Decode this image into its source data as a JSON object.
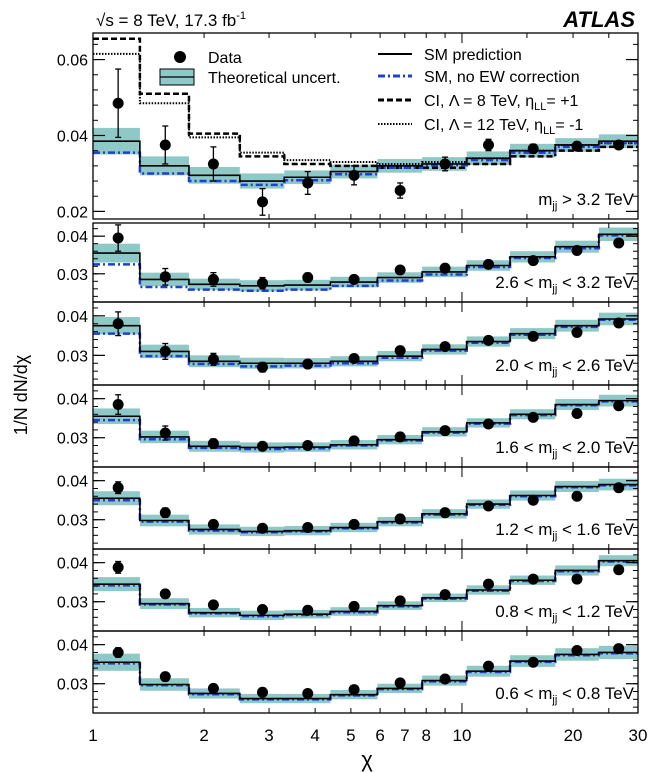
{
  "header": {
    "energy_lumi_prefix": "√s = 8 TeV, 17.3 fb",
    "energy_lumi_sup": "-1",
    "experiment": "ATLAS"
  },
  "legend": {
    "data": "Data",
    "theory": "Theoretical uncert.",
    "sm": "SM prediction",
    "sm_noew": "SM, no EW correction",
    "ci8_prefix": "CI, Λ = 8 TeV, η",
    "ci8_sub": "LL",
    "ci8_suffix": "= +1",
    "ci12_prefix": "CI, Λ = 12 TeV, η",
    "ci12_sub": "LL",
    "ci12_suffix": "= -1"
  },
  "colors": {
    "band": "#8ec9c8",
    "sm_line": "#000000",
    "noew_line": "#1f3fd0",
    "ci8": "#000000",
    "ci12": "#000000"
  },
  "chart_data": {
    "type": "line",
    "xlabel": "χ",
    "ylabel": "1/N dN/dχ",
    "xscale": "log",
    "xlim": [
      1,
      30
    ],
    "x_ticks": [
      {
        "v": 1,
        "label": "1"
      },
      {
        "v": 2,
        "label": "2"
      },
      {
        "v": 3,
        "label": "3"
      },
      {
        "v": 4,
        "label": "4"
      },
      {
        "v": 5,
        "label": "5"
      },
      {
        "v": 6,
        "label": "6"
      },
      {
        "v": 7,
        "label": "7"
      },
      {
        "v": 8,
        "label": "8"
      },
      {
        "v": 10,
        "label": "10"
      },
      {
        "v": 20,
        "label": "20"
      },
      {
        "v": 30,
        "label": "30"
      }
    ],
    "bin_edges": [
      1,
      1.34,
      1.82,
      2.5,
      3.3,
      4.4,
      5.9,
      7.8,
      10.3,
      13.5,
      17.9,
      23.5,
      30
    ],
    "data_x": [
      1.17,
      1.57,
      2.12,
      2.88,
      3.82,
      5.1,
      6.8,
      9.0,
      11.8,
      15.6,
      20.5,
      26.6
    ],
    "panels": [
      {
        "label_prefix": "m",
        "label_sub": "jj",
        "label_suffix": " > 3.2 TeV",
        "ylim": [
          0.018,
          0.067
        ],
        "yticks": [
          {
            "v": 0.02,
            "label": "0.02"
          },
          {
            "v": 0.04,
            "label": "0.04"
          },
          {
            "v": 0.06,
            "label": "0.06"
          }
        ],
        "sm": [
          0.0385,
          0.032,
          0.0295,
          0.028,
          0.029,
          0.0305,
          0.032,
          0.0325,
          0.034,
          0.036,
          0.0375,
          0.0385
        ],
        "noew": [
          0.0355,
          0.03,
          0.028,
          0.027,
          0.0282,
          0.0298,
          0.0315,
          0.0322,
          0.0335,
          0.0355,
          0.037,
          0.038
        ],
        "band_half": [
          0.0035,
          0.0025,
          0.0022,
          0.002,
          0.0018,
          0.0018,
          0.0018,
          0.0018,
          0.0018,
          0.0018,
          0.0018,
          0.0018
        ],
        "ci8": [
          0.0655,
          0.051,
          0.0405,
          0.0345,
          0.0325,
          0.032,
          0.0315,
          0.0315,
          0.0325,
          0.0345,
          0.036,
          0.037
        ],
        "ci12": [
          0.0615,
          0.0485,
          0.0395,
          0.0355,
          0.0335,
          0.033,
          0.0325,
          0.033,
          0.034,
          0.036,
          0.0375,
          0.038
        ],
        "data": [
          0.0485,
          0.0375,
          0.0325,
          0.0225,
          0.0275,
          0.0295,
          0.0255,
          0.0325,
          0.0375,
          0.0365,
          0.0372,
          0.0375
        ],
        "err": [
          0.009,
          0.005,
          0.0045,
          0.0035,
          0.003,
          0.0025,
          0.002,
          0.0018,
          0.0015,
          0.0012,
          0.001,
          0.0009
        ]
      },
      {
        "label_prefix": "2.6 < m",
        "label_sub": "jj",
        "label_suffix": " < 3.2 TeV",
        "ylim": [
          0.0225,
          0.0435
        ],
        "yticks": [
          {
            "v": 0.03,
            "label": "0.03"
          },
          {
            "v": 0.04,
            "label": "0.04"
          }
        ],
        "sm": [
          0.0355,
          0.0285,
          0.0272,
          0.0268,
          0.027,
          0.0278,
          0.029,
          0.0305,
          0.0322,
          0.0345,
          0.0372,
          0.0405
        ],
        "noew": [
          0.0325,
          0.0265,
          0.0258,
          0.0255,
          0.0258,
          0.0268,
          0.0282,
          0.0298,
          0.0318,
          0.0342,
          0.0368,
          0.0402
        ],
        "band_half": [
          0.0025,
          0.0018,
          0.0015,
          0.0015,
          0.0014,
          0.0014,
          0.0014,
          0.0014,
          0.0014,
          0.0015,
          0.0016,
          0.0018
        ],
        "data": [
          0.0395,
          0.0292,
          0.0285,
          0.0275,
          0.029,
          0.0285,
          0.031,
          0.0315,
          0.0325,
          0.0335,
          0.0362,
          0.0382
        ],
        "err": [
          0.0035,
          0.0022,
          0.0018,
          0.0015,
          0.0012,
          0.001,
          0.0008,
          0.0007,
          0.0007,
          0.0006,
          0.0006,
          0.0006
        ]
      },
      {
        "label_prefix": "2.0 < m",
        "label_sub": "jj",
        "label_suffix": " < 2.6 TeV",
        "ylim": [
          0.0225,
          0.0435
        ],
        "yticks": [
          {
            "v": 0.03,
            "label": "0.03"
          },
          {
            "v": 0.04,
            "label": "0.04"
          }
        ],
        "sm": [
          0.0375,
          0.031,
          0.0285,
          0.028,
          0.028,
          0.0285,
          0.0298,
          0.0315,
          0.0335,
          0.0355,
          0.0375,
          0.0392
        ],
        "noew": [
          0.0355,
          0.0298,
          0.0278,
          0.0272,
          0.0274,
          0.028,
          0.0294,
          0.0312,
          0.0332,
          0.0352,
          0.0372,
          0.039
        ],
        "band_half": [
          0.0022,
          0.0017,
          0.0015,
          0.0014,
          0.0013,
          0.0013,
          0.0013,
          0.0013,
          0.0013,
          0.0014,
          0.0015,
          0.0016
        ],
        "data": [
          0.038,
          0.031,
          0.029,
          0.027,
          0.0278,
          0.0292,
          0.0312,
          0.0322,
          0.0338,
          0.0348,
          0.0358,
          0.0382
        ],
        "err": [
          0.003,
          0.002,
          0.0015,
          0.0012,
          0.001,
          0.0008,
          0.0007,
          0.0006,
          0.0005,
          0.0005,
          0.0005,
          0.0005
        ]
      },
      {
        "label_prefix": "1.6 < m",
        "label_sub": "jj",
        "label_suffix": " < 2.0 TeV",
        "ylim": [
          0.0225,
          0.0435
        ],
        "yticks": [
          {
            "v": 0.03,
            "label": "0.03"
          },
          {
            "v": 0.04,
            "label": "0.04"
          }
        ],
        "sm": [
          0.0355,
          0.0302,
          0.0278,
          0.0275,
          0.0276,
          0.0282,
          0.0295,
          0.0315,
          0.0338,
          0.036,
          0.0385,
          0.0395
        ],
        "noew": [
          0.0345,
          0.0296,
          0.0274,
          0.0271,
          0.0273,
          0.028,
          0.0293,
          0.0313,
          0.0336,
          0.0358,
          0.0383,
          0.0393
        ],
        "band_half": [
          0.002,
          0.0016,
          0.0014,
          0.0013,
          0.0012,
          0.0012,
          0.0012,
          0.0012,
          0.0012,
          0.0013,
          0.0014,
          0.0015
        ],
        "data": [
          0.0385,
          0.0312,
          0.0285,
          0.0278,
          0.028,
          0.0292,
          0.0302,
          0.0318,
          0.0335,
          0.0352,
          0.0362,
          0.0382
        ],
        "err": [
          0.0025,
          0.0018,
          0.0012,
          0.001,
          0.0008,
          0.0007,
          0.0006,
          0.0005,
          0.0005,
          0.0005,
          0.0005,
          0.0005
        ]
      },
      {
        "label_prefix": "1.2 < m",
        "label_sub": "jj",
        "label_suffix": " < 1.6 TeV",
        "ylim": [
          0.0225,
          0.0435
        ],
        "yticks": [
          {
            "v": 0.03,
            "label": "0.03"
          },
          {
            "v": 0.04,
            "label": "0.04"
          }
        ],
        "sm": [
          0.0355,
          0.0298,
          0.0275,
          0.027,
          0.0272,
          0.028,
          0.0295,
          0.0315,
          0.034,
          0.0362,
          0.0385,
          0.039
        ],
        "noew": [
          0.035,
          0.0295,
          0.0272,
          0.0268,
          0.027,
          0.0278,
          0.0293,
          0.0313,
          0.0338,
          0.036,
          0.0383,
          0.0388
        ],
        "band_half": [
          0.0018,
          0.0015,
          0.0013,
          0.0012,
          0.0012,
          0.0012,
          0.0012,
          0.0012,
          0.0012,
          0.0013,
          0.0014,
          0.0015
        ],
        "data": [
          0.0382,
          0.0318,
          0.0288,
          0.0278,
          0.028,
          0.0288,
          0.0302,
          0.0318,
          0.0335,
          0.035,
          0.036,
          0.0382
        ],
        "err": [
          0.0015,
          0.0012,
          0.0008,
          0.0008,
          0.0007,
          0.0006,
          0.0005,
          0.0005,
          0.0005,
          0.0004,
          0.0004,
          0.0004
        ]
      },
      {
        "label_prefix": "0.8 < m",
        "label_sub": "jj",
        "label_suffix": " < 1.2 TeV",
        "ylim": [
          0.0225,
          0.0435
        ],
        "yticks": [
          {
            "v": 0.03,
            "label": "0.03"
          },
          {
            "v": 0.04,
            "label": "0.04"
          }
        ],
        "sm": [
          0.0345,
          0.0295,
          0.0272,
          0.0265,
          0.0268,
          0.0275,
          0.029,
          0.031,
          0.033,
          0.0355,
          0.038,
          0.0405
        ],
        "noew": [
          0.0342,
          0.0293,
          0.027,
          0.0263,
          0.0266,
          0.0273,
          0.0288,
          0.0308,
          0.0328,
          0.0353,
          0.0378,
          0.0403
        ],
        "band_half": [
          0.0018,
          0.0014,
          0.0012,
          0.0012,
          0.0011,
          0.0011,
          0.0011,
          0.0011,
          0.0012,
          0.0012,
          0.0013,
          0.0014
        ],
        "data": [
          0.0388,
          0.032,
          0.0292,
          0.028,
          0.0278,
          0.0288,
          0.0302,
          0.0318,
          0.0345,
          0.0358,
          0.0358,
          0.0382
        ],
        "err": [
          0.0015,
          0.001,
          0.0008,
          0.0007,
          0.0006,
          0.0006,
          0.0005,
          0.0005,
          0.0004,
          0.0004,
          0.0004,
          0.0004
        ]
      },
      {
        "label_prefix": "0.6 < m",
        "label_sub": "jj",
        "label_suffix": " < 0.8 TeV",
        "ylim": [
          0.0225,
          0.0435
        ],
        "yticks": [
          {
            "v": 0.03,
            "label": "0.03"
          },
          {
            "v": 0.04,
            "label": "0.04"
          }
        ],
        "sm": [
          0.0355,
          0.0298,
          0.0275,
          0.0262,
          0.0262,
          0.0272,
          0.0288,
          0.0308,
          0.0332,
          0.0358,
          0.0375,
          0.038
        ],
        "noew": [
          0.0352,
          0.0296,
          0.0273,
          0.026,
          0.026,
          0.027,
          0.0286,
          0.0306,
          0.033,
          0.0356,
          0.0373,
          0.0378
        ],
        "band_half": [
          0.0022,
          0.0016,
          0.0013,
          0.0012,
          0.0012,
          0.0012,
          0.0012,
          0.0013,
          0.0014,
          0.0015,
          0.0016,
          0.0017
        ],
        "data": [
          0.038,
          0.0318,
          0.0288,
          0.0278,
          0.0275,
          0.0285,
          0.0302,
          0.0312,
          0.0345,
          0.0355,
          0.0385,
          0.039
        ],
        "err": [
          0.0012,
          0.0009,
          0.0007,
          0.0006,
          0.0006,
          0.0005,
          0.0005,
          0.0005,
          0.0004,
          0.0004,
          0.0004,
          0.0004
        ]
      }
    ]
  }
}
